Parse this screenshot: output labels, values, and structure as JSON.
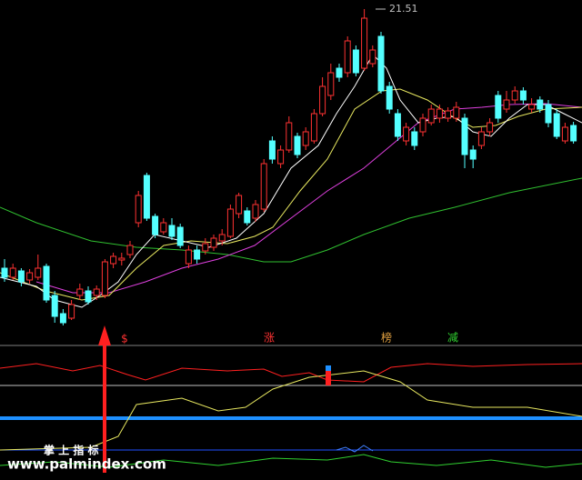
{
  "chart_data": {
    "type": "candlestick",
    "up_color": "#ff3232",
    "down_color": "#54ffff",
    "ylim": [
      14.39,
      21.71
    ],
    "high_marker": 21.51,
    "candles": {
      "open": [
        15.81,
        15.61,
        15.75,
        15.55,
        15.61,
        15.85,
        15.21,
        14.81,
        14.71,
        15.21,
        15.31,
        15.21,
        15.21,
        15.91,
        15.99,
        16.11,
        16.81,
        17.85,
        16.95,
        16.61,
        16.75,
        16.71,
        15.91,
        16.21,
        16.19,
        16.27,
        16.41,
        16.51,
        17.01,
        17.07,
        16.91,
        17.11,
        18.61,
        18.11,
        18.41,
        18.71,
        18.51,
        18.61,
        19.21,
        19.61,
        20.21,
        20.11,
        20.61,
        20.21,
        20.31,
        20.91,
        19.81,
        19.21,
        18.61,
        18.81,
        18.81,
        19.01,
        19.11,
        19.11,
        19.11,
        19.11,
        18.41,
        18.51,
        18.81,
        19.61,
        19.31,
        19.51,
        19.71,
        19.31,
        19.51,
        19.41,
        19.21,
        18.61,
        18.95
      ],
      "high": [
        16.01,
        15.91,
        15.81,
        15.79,
        16.11,
        15.91,
        15.31,
        14.91,
        15.11,
        15.47,
        15.41,
        15.43,
        16.01,
        16.15,
        16.15,
        16.41,
        17.51,
        17.91,
        17.01,
        16.91,
        16.91,
        16.79,
        16.31,
        16.31,
        16.47,
        16.55,
        16.67,
        17.21,
        17.47,
        17.15,
        17.31,
        18.21,
        18.71,
        18.51,
        19.15,
        18.79,
        18.91,
        19.31,
        20.01,
        20.31,
        20.31,
        20.91,
        20.71,
        21.51,
        20.71,
        21.01,
        19.91,
        19.31,
        19.01,
        18.91,
        19.21,
        19.41,
        19.41,
        19.35,
        19.47,
        19.21,
        18.51,
        18.91,
        19.11,
        19.71,
        19.71,
        19.81,
        19.79,
        19.55,
        19.59,
        19.51,
        19.31,
        19.01,
        19.03
      ],
      "low": [
        15.51,
        15.55,
        15.41,
        15.47,
        15.55,
        15.05,
        14.61,
        14.55,
        14.67,
        15.11,
        15.01,
        15.11,
        15.15,
        15.81,
        15.87,
        16.03,
        16.71,
        16.85,
        16.47,
        16.55,
        16.43,
        16.25,
        15.81,
        15.91,
        16.11,
        16.19,
        16.31,
        16.47,
        16.91,
        16.75,
        16.83,
        17.05,
        18.11,
        18.01,
        18.35,
        18.23,
        18.41,
        18.55,
        19.15,
        19.51,
        19.91,
        20.01,
        20.03,
        20.15,
        20.23,
        19.65,
        19.21,
        18.61,
        18.51,
        18.41,
        18.71,
        18.95,
        19.01,
        19.03,
        19.03,
        18.01,
        18.01,
        18.43,
        18.71,
        19.01,
        19.23,
        19.43,
        19.41,
        19.23,
        19.23,
        18.91,
        18.65,
        18.55,
        18.55
      ],
      "close": [
        15.61,
        15.81,
        15.51,
        15.71,
        15.81,
        15.11,
        14.75,
        14.61,
        15.01,
        15.35,
        15.07,
        15.35,
        15.95,
        16.07,
        16.03,
        16.31,
        17.41,
        16.91,
        16.55,
        16.81,
        16.51,
        16.31,
        16.21,
        16.01,
        16.35,
        16.47,
        16.55,
        17.11,
        17.41,
        16.81,
        17.21,
        18.11,
        18.21,
        18.41,
        19.01,
        18.31,
        18.81,
        19.21,
        19.81,
        20.11,
        20.01,
        20.81,
        20.11,
        21.31,
        20.61,
        19.71,
        19.31,
        18.71,
        18.91,
        18.51,
        19.11,
        19.31,
        19.31,
        19.27,
        19.35,
        18.31,
        18.21,
        18.81,
        19.01,
        19.11,
        19.51,
        19.71,
        19.51,
        19.41,
        19.31,
        19.01,
        18.71,
        18.91,
        18.61
      ]
    },
    "signals": [
      "$",
      "涨",
      "榜",
      "减"
    ],
    "indicator_label": "掌 上 指 标",
    "watermark": "www.palmindex.com"
  }
}
